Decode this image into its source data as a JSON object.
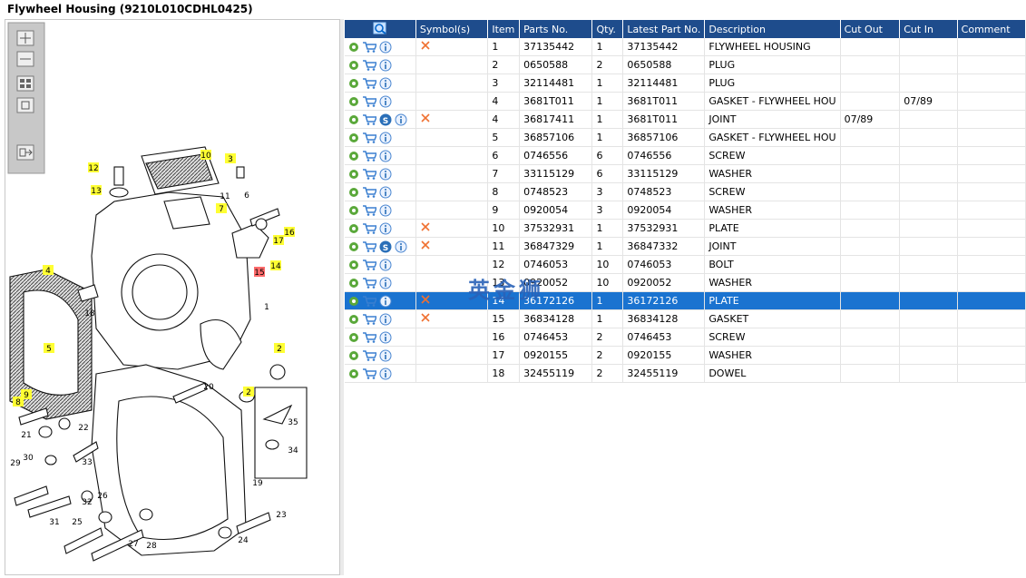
{
  "header": {
    "title": "Flywheel Housing (9210L010CDHL0425)"
  },
  "diagram": {
    "callouts": [
      "10",
      "3",
      "12",
      "13",
      "11",
      "6",
      "7",
      "16",
      "17",
      "15",
      "14",
      "4",
      "18",
      "1",
      "5",
      "2",
      "9",
      "8",
      "20",
      "2",
      "21",
      "22",
      "30",
      "33",
      "29",
      "32",
      "26",
      "19",
      "35",
      "34",
      "25",
      "31",
      "27",
      "28",
      "23",
      "24"
    ]
  },
  "table": {
    "columns": [
      "Symbol(s)",
      "Item",
      "Parts No.",
      "Qty.",
      "Latest Part No.",
      "Description",
      "Cut Out",
      "Cut In",
      "Comment"
    ],
    "selected_row": 14,
    "rows": [
      {
        "s_icon": false,
        "cross": true,
        "cells": [
          "",
          "1",
          "37135442",
          "1",
          "37135442",
          "FLYWHEEL HOUSING",
          "",
          "",
          ""
        ]
      },
      {
        "s_icon": false,
        "cross": false,
        "cells": [
          "",
          "2",
          "0650588",
          "2",
          "0650588",
          "PLUG",
          "",
          "",
          ""
        ]
      },
      {
        "s_icon": false,
        "cross": false,
        "cells": [
          "",
          "3",
          "32114481",
          "1",
          "32114481",
          "PLUG",
          "",
          "",
          ""
        ]
      },
      {
        "s_icon": false,
        "cross": false,
        "cells": [
          "",
          "4",
          "3681T011",
          "1",
          "3681T011",
          "GASKET - FLYWHEEL HOU",
          "",
          "07/89",
          ""
        ]
      },
      {
        "s_icon": true,
        "cross": true,
        "cells": [
          "",
          "4",
          "36817411",
          "1",
          "3681T011",
          "JOINT",
          "07/89",
          "",
          ""
        ]
      },
      {
        "s_icon": false,
        "cross": false,
        "cells": [
          "",
          "5",
          "36857106",
          "1",
          "36857106",
          "GASKET - FLYWHEEL HOU",
          "",
          "",
          ""
        ]
      },
      {
        "s_icon": false,
        "cross": false,
        "cells": [
          "",
          "6",
          "0746556",
          "6",
          "0746556",
          "SCREW",
          "",
          "",
          ""
        ]
      },
      {
        "s_icon": false,
        "cross": false,
        "cells": [
          "",
          "7",
          "33115129",
          "6",
          "33115129",
          "WASHER",
          "",
          "",
          ""
        ]
      },
      {
        "s_icon": false,
        "cross": false,
        "cells": [
          "",
          "8",
          "0748523",
          "3",
          "0748523",
          "SCREW",
          "",
          "",
          ""
        ]
      },
      {
        "s_icon": false,
        "cross": false,
        "cells": [
          "",
          "9",
          "0920054",
          "3",
          "0920054",
          "WASHER",
          "",
          "",
          ""
        ]
      },
      {
        "s_icon": false,
        "cross": true,
        "cells": [
          "",
          "10",
          "37532931",
          "1",
          "37532931",
          "PLATE",
          "",
          "",
          ""
        ]
      },
      {
        "s_icon": true,
        "cross": true,
        "cells": [
          "",
          "11",
          "36847329",
          "1",
          "36847332",
          "JOINT",
          "",
          "",
          ""
        ]
      },
      {
        "s_icon": false,
        "cross": false,
        "cells": [
          "",
          "12",
          "0746053",
          "10",
          "0746053",
          "BOLT",
          "",
          "",
          ""
        ]
      },
      {
        "s_icon": false,
        "cross": false,
        "cells": [
          "",
          "13",
          "0920052",
          "10",
          "0920052",
          "WASHER",
          "",
          "",
          ""
        ]
      },
      {
        "s_icon": false,
        "cross": true,
        "cells": [
          "",
          "14",
          "36172126",
          "1",
          "36172126",
          "PLATE",
          "",
          "",
          ""
        ]
      },
      {
        "s_icon": false,
        "cross": true,
        "cells": [
          "",
          "15",
          "36834128",
          "1",
          "36834128",
          "GASKET",
          "",
          "",
          ""
        ]
      },
      {
        "s_icon": false,
        "cross": false,
        "cells": [
          "",
          "16",
          "0746453",
          "2",
          "0746453",
          "SCREW",
          "",
          "",
          ""
        ]
      },
      {
        "s_icon": false,
        "cross": false,
        "cells": [
          "",
          "17",
          "0920155",
          "2",
          "0920155",
          "WASHER",
          "",
          "",
          ""
        ]
      },
      {
        "s_icon": false,
        "cross": false,
        "cells": [
          "",
          "18",
          "32455119",
          "2",
          "32455119",
          "DOWEL",
          "",
          "",
          ""
        ]
      }
    ]
  },
  "watermark": "英金狮"
}
